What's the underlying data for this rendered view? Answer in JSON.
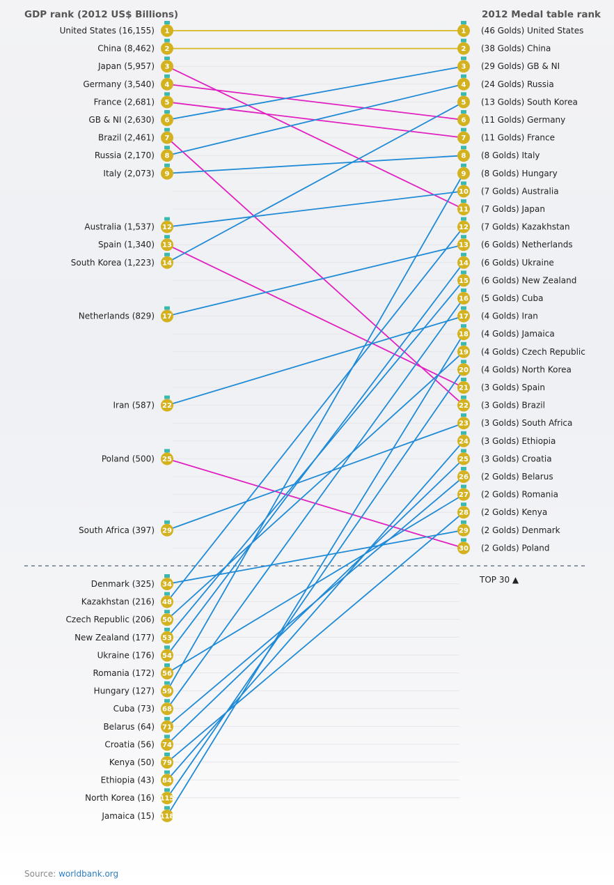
{
  "chart_data": {
    "type": "slope",
    "left_title": "GDP rank (2012 US$ Billions)",
    "right_title": "2012 Medal table rank",
    "divider_label": "TOP 30 ▲",
    "colors": {
      "improved": "#1f8ad6",
      "worse": "#e020c0",
      "same": "#d8b822",
      "medal": "#d4b21f",
      "ribbon": "#3cb8b0"
    },
    "countries": [
      {
        "name": "United States",
        "gdp_rank": 1,
        "gdp": "16,155",
        "medal_rank": 1,
        "golds": 46
      },
      {
        "name": "China",
        "gdp_rank": 2,
        "gdp": "8,462",
        "medal_rank": 2,
        "golds": 38
      },
      {
        "name": "Japan",
        "gdp_rank": 3,
        "gdp": "5,957",
        "medal_rank": 11,
        "golds": 7
      },
      {
        "name": "Germany",
        "gdp_rank": 4,
        "gdp": "3,540",
        "medal_rank": 6,
        "golds": 11
      },
      {
        "name": "France",
        "gdp_rank": 5,
        "gdp": "2,681",
        "medal_rank": 7,
        "golds": 11
      },
      {
        "name": "GB & NI",
        "gdp_rank": 6,
        "gdp": "2,630",
        "medal_rank": 3,
        "golds": 29
      },
      {
        "name": "Brazil",
        "gdp_rank": 7,
        "gdp": "2,461",
        "medal_rank": 22,
        "golds": 3
      },
      {
        "name": "Russia",
        "gdp_rank": 8,
        "gdp": "2,170",
        "medal_rank": 4,
        "golds": 24
      },
      {
        "name": "Italy",
        "gdp_rank": 9,
        "gdp": "2,073",
        "medal_rank": 8,
        "golds": 8
      },
      {
        "name": "Australia",
        "gdp_rank": 12,
        "gdp": "1,537",
        "medal_rank": 10,
        "golds": 7
      },
      {
        "name": "Spain",
        "gdp_rank": 13,
        "gdp": "1,340",
        "medal_rank": 21,
        "golds": 3
      },
      {
        "name": "South Korea",
        "gdp_rank": 14,
        "gdp": "1,223",
        "medal_rank": 5,
        "golds": 13
      },
      {
        "name": "Netherlands",
        "gdp_rank": 17,
        "gdp": "829",
        "medal_rank": 13,
        "golds": 6
      },
      {
        "name": "Iran",
        "gdp_rank": 22,
        "gdp": "587",
        "medal_rank": 17,
        "golds": 4
      },
      {
        "name": "Poland",
        "gdp_rank": 25,
        "gdp": "500",
        "medal_rank": 30,
        "golds": 2
      },
      {
        "name": "South Africa",
        "gdp_rank": 29,
        "gdp": "397",
        "medal_rank": 23,
        "golds": 3
      },
      {
        "name": "Denmark",
        "gdp_rank": 34,
        "gdp": "325",
        "medal_rank": 29,
        "golds": 2
      },
      {
        "name": "Kazakhstan",
        "gdp_rank": 48,
        "gdp": "216",
        "medal_rank": 12,
        "golds": 7
      },
      {
        "name": "Czech Republic",
        "gdp_rank": 50,
        "gdp": "206",
        "medal_rank": 19,
        "golds": 4
      },
      {
        "name": "New Zealand",
        "gdp_rank": 53,
        "gdp": "177",
        "medal_rank": 15,
        "golds": 6
      },
      {
        "name": "Ukraine",
        "gdp_rank": 54,
        "gdp": "176",
        "medal_rank": 14,
        "golds": 6
      },
      {
        "name": "Romania",
        "gdp_rank": 56,
        "gdp": "172",
        "medal_rank": 27,
        "golds": 2
      },
      {
        "name": "Hungary",
        "gdp_rank": 59,
        "gdp": "127",
        "medal_rank": 9,
        "golds": 8
      },
      {
        "name": "Cuba",
        "gdp_rank": 68,
        "gdp": "73",
        "medal_rank": 16,
        "golds": 5
      },
      {
        "name": "Belarus",
        "gdp_rank": 71,
        "gdp": "64",
        "medal_rank": 26,
        "golds": 2
      },
      {
        "name": "Croatia",
        "gdp_rank": 74,
        "gdp": "56",
        "medal_rank": 25,
        "golds": 3
      },
      {
        "name": "Kenya",
        "gdp_rank": 79,
        "gdp": "50",
        "medal_rank": 28,
        "golds": 2
      },
      {
        "name": "Ethiopia",
        "gdp_rank": 84,
        "gdp": "43",
        "medal_rank": 24,
        "golds": 3
      },
      {
        "name": "North Korea",
        "gdp_rank": 115,
        "gdp": "16",
        "medal_rank": 20,
        "golds": 4
      },
      {
        "name": "Jamaica",
        "gdp_rank": 118,
        "gdp": "15",
        "medal_rank": 18,
        "golds": 4
      }
    ]
  },
  "source": {
    "prefix": "Source: ",
    "link": "worldbank.org"
  }
}
